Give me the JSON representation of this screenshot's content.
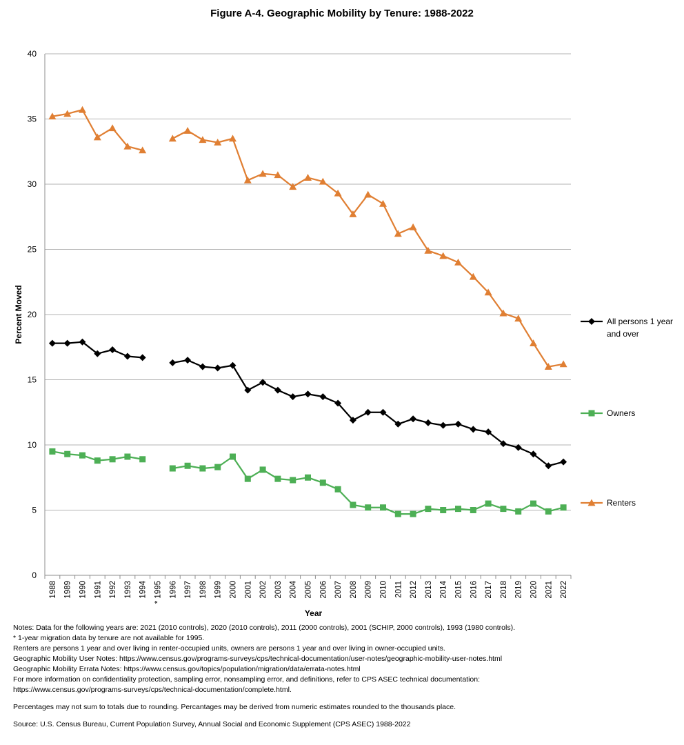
{
  "chart_data": {
    "type": "line",
    "title": "Figure A-4. Geographic Mobility by Tenure: 1988-2022",
    "xlabel": "Year",
    "ylabel": "Percent Moved",
    "ylim": [
      0,
      40
    ],
    "yticks": [
      0,
      5,
      10,
      15,
      20,
      25,
      30,
      35,
      40
    ],
    "grid": true,
    "legend": "right",
    "categories": [
      "1988",
      "1989",
      "1990",
      "1991",
      "1992",
      "1993",
      "1994",
      "* 1995",
      "1996",
      "1997",
      "1998",
      "1999",
      "2000",
      "2001",
      "2002",
      "2003",
      "2004",
      "2005",
      "2006",
      "2007",
      "2008",
      "2009",
      "2010",
      "2011",
      "2012",
      "2013",
      "2014",
      "2015",
      "2016",
      "2017",
      "2018",
      "2019",
      "2020",
      "2021",
      "2022"
    ],
    "series": [
      {
        "name": "All persons 1 year and over",
        "color": "#000000",
        "marker": "diamond",
        "values": [
          17.8,
          17.8,
          17.9,
          17.0,
          17.3,
          16.8,
          16.7,
          null,
          16.3,
          16.5,
          16.0,
          15.9,
          16.1,
          14.2,
          14.8,
          14.2,
          13.7,
          13.9,
          13.7,
          13.2,
          11.9,
          12.5,
          12.5,
          11.6,
          12.0,
          11.7,
          11.5,
          11.6,
          11.2,
          11.0,
          10.1,
          9.8,
          9.3,
          8.4,
          8.7
        ]
      },
      {
        "name": "Owners",
        "color": "#4daf55",
        "marker": "square",
        "values": [
          9.5,
          9.3,
          9.2,
          8.8,
          8.9,
          9.1,
          8.9,
          null,
          8.2,
          8.4,
          8.2,
          8.3,
          9.1,
          7.4,
          8.1,
          7.4,
          7.3,
          7.5,
          7.1,
          6.6,
          5.4,
          5.2,
          5.2,
          4.7,
          4.7,
          5.1,
          5.0,
          5.1,
          5.0,
          5.5,
          5.1,
          4.9,
          5.5,
          4.9,
          5.2
        ]
      },
      {
        "name": "Renters",
        "color": "#e07f33",
        "marker": "triangle",
        "values": [
          35.2,
          35.4,
          35.7,
          33.6,
          34.3,
          32.9,
          32.6,
          null,
          33.5,
          34.1,
          33.4,
          33.2,
          33.5,
          30.3,
          30.8,
          30.7,
          29.8,
          30.5,
          30.2,
          29.3,
          27.7,
          29.2,
          28.5,
          26.2,
          26.7,
          24.9,
          24.5,
          24.0,
          22.9,
          21.7,
          20.1,
          19.7,
          17.8,
          16.0,
          16.2
        ]
      }
    ]
  },
  "notes": [
    "Notes: Data for the following years are: 2021 (2010 controls), 2020 (2010 controls), 2011 (2000 controls), 2001 (SCHIP, 2000 controls), 1993 (1980 controls).",
    "* 1-year migration data by tenure are not available for 1995.",
    "Renters are persons 1 year and over living in renter-occupied units, owners are persons 1 year and over living in owner-occupied units.",
    "Geographic Mobility User Notes: https://www.census.gov/programs-surveys/cps/technical-documentation/user-notes/geographic-mobility-user-notes.html",
    "Geographic Mobility Errata Notes: https://www.census.gov/topics/population/migration/data/errata-notes.html",
    "For more information on confidentiality protection, sampling error, nonsampling error, and definitions, refer to CPS ASEC technical documentation:",
    "https://www.census.gov/programs-surveys/cps/technical-documentation/complete.html."
  ],
  "rounding_note": "Percentages may not sum to totals due to rounding. Percantages may be derived from numeric estimates rounded to the thousands place.",
  "source": "Source: U.S. Census Bureau, Current Population Survey, Annual Social and Economic Supplement (CPS ASEC) 1988-2022"
}
